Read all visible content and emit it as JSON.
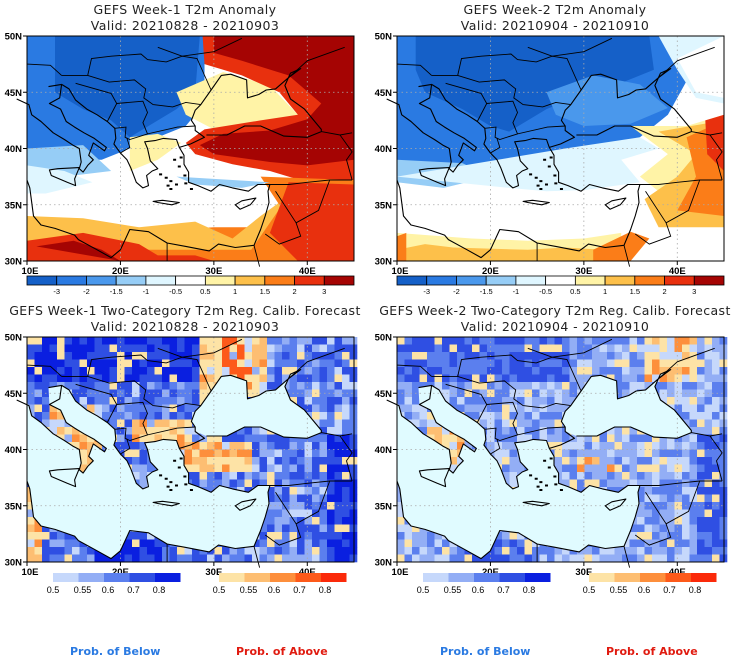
{
  "panels": [
    {
      "title": "GEFS Week-1 T2m Anomaly",
      "valid": "Valid: 20210828 - 20210903",
      "kind": "anomaly"
    },
    {
      "title": "GEFS Week-2 T2m Anomaly",
      "valid": "Valid: 20210904 - 20210910",
      "kind": "anomaly"
    },
    {
      "title": "GEFS Week-1 Two-Category T2m Reg. Calib. Forecast",
      "valid": "Valid: 20210828 - 20210903",
      "kind": "probability"
    },
    {
      "title": "GEFS Week-2 Two-Category T2m Reg. Calib. Forecast",
      "valid": "Valid: 20210904 - 20210910",
      "kind": "probability"
    }
  ],
  "legend": {
    "below_label": "Prob. of Below",
    "above_label": "Prob. of Above",
    "below_color": "#2a7ae2",
    "above_color": "#e01b10"
  },
  "chart_data": [
    {
      "type": "heatmap",
      "title": "GEFS Week-1 T2m Anomaly",
      "subtitle": "Valid: 20210828 - 20210903",
      "xlim": [
        10,
        45
      ],
      "ylim": [
        30,
        50
      ],
      "xticks": [
        "10E",
        "20E",
        "30E",
        "40E"
      ],
      "yticks": [
        "30N",
        "35N",
        "40N",
        "45N",
        "50N"
      ],
      "grid": true,
      "colorbar": {
        "levels": [
          "-3",
          "-2",
          "-1.5",
          "-1",
          "-0.5",
          "0.5",
          "1",
          "1.5",
          "2",
          "3"
        ],
        "colors": [
          "#1560c8",
          "#2a7ae2",
          "#4a98ec",
          "#96cdf6",
          "#dff6ff",
          "#ffffff",
          "#fff3a6",
          "#fdc04a",
          "#fb7d18",
          "#e8300e",
          "#a50403"
        ]
      }
    },
    {
      "type": "heatmap",
      "title": "GEFS Week-2 T2m Anomaly",
      "subtitle": "Valid: 20210904 - 20210910",
      "xlim": [
        10,
        45
      ],
      "ylim": [
        30,
        50
      ],
      "xticks": [
        "10E",
        "20E",
        "30E",
        "40E"
      ],
      "yticks": [
        "30N",
        "35N",
        "40N",
        "45N",
        "50N"
      ],
      "grid": true,
      "colorbar": {
        "levels": [
          "-3",
          "-2",
          "-1.5",
          "-1",
          "-0.5",
          "0.5",
          "1",
          "1.5",
          "2",
          "3"
        ],
        "colors": [
          "#1560c8",
          "#2a7ae2",
          "#4a98ec",
          "#96cdf6",
          "#dff6ff",
          "#ffffff",
          "#fff3a6",
          "#fdc04a",
          "#fb7d18",
          "#e8300e",
          "#a50403"
        ]
      }
    },
    {
      "type": "heatmap",
      "title": "GEFS Week-1 Two-Category T2m Reg. Calib. Forecast",
      "subtitle": "Valid: 20210828 - 20210903",
      "xlim": [
        10,
        45
      ],
      "ylim": [
        30,
        50
      ],
      "xticks": [
        "10E",
        "20E",
        "30E",
        "40E"
      ],
      "yticks": [
        "30N",
        "35N",
        "40N",
        "45N",
        "50N"
      ],
      "grid": true,
      "colorbar_below": {
        "levels": [
          "0.5",
          "0.55",
          "0.6",
          "0.7",
          "0.8"
        ],
        "colors": [
          "#c6d8fb",
          "#93aef5",
          "#5b7fee",
          "#2f4fe3",
          "#0a1fe0"
        ]
      },
      "colorbar_above": {
        "levels": [
          "0.5",
          "0.55",
          "0.6",
          "0.7",
          "0.8"
        ],
        "colors": [
          "#fde3a6",
          "#fdbe72",
          "#fd8f3c",
          "#fd5a1a",
          "#fb2a0a"
        ]
      }
    },
    {
      "type": "heatmap",
      "title": "GEFS Week-2 Two-Category T2m Reg. Calib. Forecast",
      "subtitle": "Valid: 20210904 - 20210910",
      "xlim": [
        10,
        45
      ],
      "ylim": [
        30,
        50
      ],
      "xticks": [
        "10E",
        "20E",
        "30E",
        "40E"
      ],
      "yticks": [
        "30N",
        "35N",
        "40N",
        "45N",
        "50N"
      ],
      "grid": true,
      "colorbar_below": {
        "levels": [
          "0.5",
          "0.55",
          "0.6",
          "0.7",
          "0.8"
        ],
        "colors": [
          "#c6d8fb",
          "#93aef5",
          "#5b7fee",
          "#2f4fe3",
          "#0a1fe0"
        ]
      },
      "colorbar_above": {
        "levels": [
          "0.5",
          "0.55",
          "0.6",
          "0.7",
          "0.8"
        ],
        "colors": [
          "#fde3a6",
          "#fdbe72",
          "#fd8f3c",
          "#fd5a1a",
          "#fb2a0a"
        ]
      }
    }
  ]
}
